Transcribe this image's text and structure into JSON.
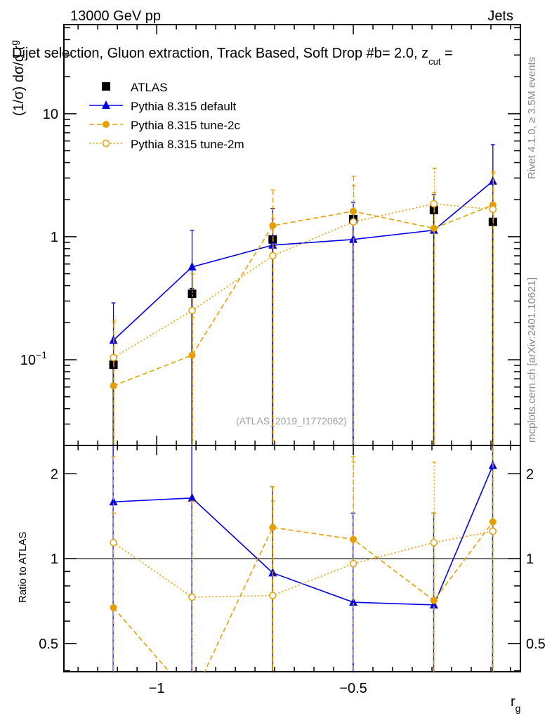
{
  "header": {
    "left": "13000 GeV pp",
    "right": "Jets",
    "title": "Dijet selection, Gluon extraction, Track Based, Soft Drop #beta = 2.0, z_cut =",
    "title_main": "Dijet selection, Gluon extraction, Track Based, Soft Drop #b",
    "title_tail": "= 2.0, z",
    "title_sub": "cut",
    "title_end": " ="
  },
  "side_text": {
    "rivet": "Rivet 4.1.0, ≥ 3.5M events",
    "mcplots": "mcplots.cern.ch [arXiv:2401.10621]"
  },
  "watermark": "(ATLAS_2019_I1772062)",
  "chart_data": [
    {
      "type": "line",
      "panel": "main",
      "ylabel": "(1/σ) dσ/d r_g",
      "ylabel_main": "(1/σ) dσ/d r",
      "ylabel_sub": "g",
      "yscale": "log",
      "ylim": [
        0.0201,
        53
      ],
      "xlim": [
        -1.236,
        -0.075
      ],
      "yticks": [
        {
          "v": 0.1,
          "label": "10",
          "sup": "−1"
        },
        {
          "v": 1,
          "label": "1",
          "sup": ""
        },
        {
          "v": 10,
          "label": "10",
          "sup": ""
        }
      ],
      "legend_position": "top-left",
      "x": [
        -1.11,
        -0.91,
        -0.705,
        -0.5,
        -0.295,
        -0.145
      ],
      "series": [
        {
          "name": "ATLAS",
          "color": "#000000",
          "marker": "square",
          "line": "none",
          "values": [
            0.091,
            0.344,
            0.95,
            1.39,
            1.65,
            1.32
          ],
          "err_up": [
            0.1,
            0.38,
            1.0,
            1.45,
            1.7,
            1.38
          ]
        },
        {
          "name": "Pythia 8.315 default",
          "color": "#0000e6",
          "marker": "triangle",
          "line": "solid",
          "values": [
            0.144,
            0.568,
            0.854,
            0.95,
            1.13,
            2.83
          ],
          "err_up": [
            0.29,
            1.13,
            1.7,
            1.9,
            2.2,
            5.6
          ]
        },
        {
          "name": "Pythia 8.315 tune-2c",
          "color": "#e69f00",
          "marker": "circle",
          "line": "dashed",
          "values": [
            0.0614,
            0.109,
            1.23,
            1.61,
            1.17,
            1.81
          ],
          "err_up": [
            0.2,
            0.22,
            2.4,
            3.1,
            2.3,
            3.4
          ]
        },
        {
          "name": "Pythia 8.315 tune-2m",
          "color": "#e69f00",
          "marker": "open-circle",
          "line": "dotted",
          "values": [
            0.104,
            0.251,
            0.7,
            1.32,
            1.85,
            1.67
          ],
          "err_up": [
            0.21,
            0.5,
            1.4,
            2.6,
            3.6,
            3.3
          ]
        }
      ]
    },
    {
      "type": "line",
      "panel": "ratio",
      "xlabel": "r_g",
      "xlabel_main": "r",
      "xlabel_sub": "g",
      "ylabel": "Ratio to ATLAS",
      "yscale": "log",
      "ylim": [
        0.397,
        2.52
      ],
      "yticks": [
        {
          "v": 0.5,
          "label": "0.5"
        },
        {
          "v": 1,
          "label": "1"
        },
        {
          "v": 2,
          "label": "2"
        }
      ],
      "xticks": [
        {
          "v": -1,
          "label": "−1"
        },
        {
          "v": -0.5,
          "label": "−0.5"
        }
      ],
      "x": [
        -1.11,
        -0.91,
        -0.705,
        -0.5,
        -0.295,
        -0.145
      ],
      "series": [
        {
          "name": "Pythia 8.315 default",
          "color": "#0000e6",
          "marker": "triangle",
          "line": "solid",
          "values": [
            1.59,
            1.64,
            0.89,
            0.7,
            0.685,
            2.14
          ],
          "err_up": [
            3.0,
            3.0,
            1.8,
            1.45,
            1.45,
            3.0
          ]
        },
        {
          "name": "Pythia 8.315 tune-2c",
          "color": "#e69f00",
          "marker": "circle",
          "line": "dashed",
          "values": [
            0.67,
            0.32,
            1.29,
            1.17,
            0.71,
            1.35
          ],
          "err_up": [
            2.3,
            1.6,
            1.8,
            2.3,
            1.45,
            3.0
          ]
        },
        {
          "name": "Pythia 8.315 tune-2m",
          "color": "#e69f00",
          "marker": "open-circle",
          "line": "dotted",
          "values": [
            1.14,
            0.73,
            0.74,
            0.96,
            1.14,
            1.25
          ],
          "err_up": [
            1.45,
            1.6,
            1.6,
            2.2,
            2.2,
            3.0
          ]
        }
      ]
    }
  ]
}
